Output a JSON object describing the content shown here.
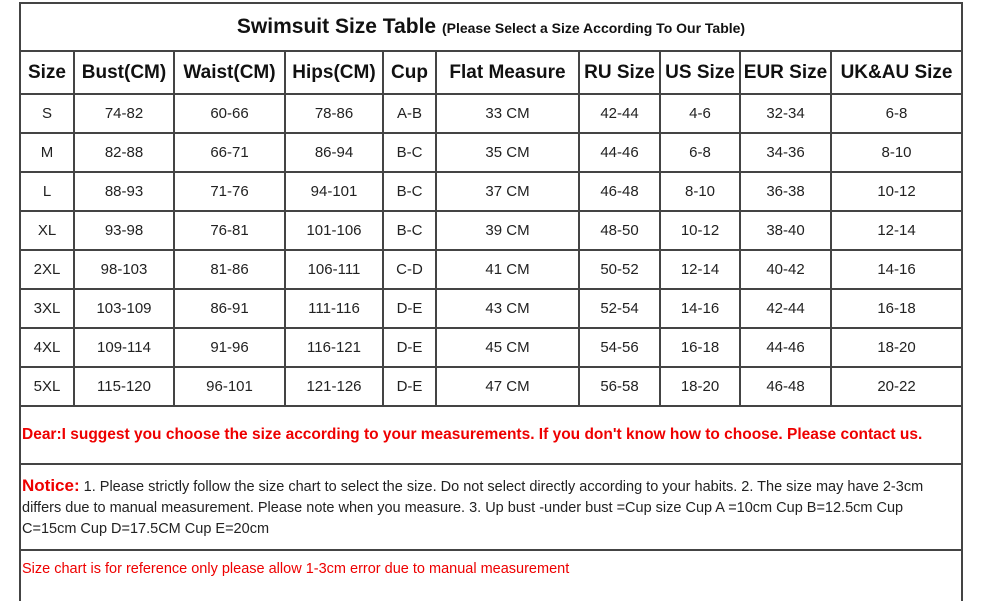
{
  "title": "Swimsuit Size Table",
  "subtitle": "(Please Select a Size According To Our Table)",
  "headers": [
    "Size",
    "Bust(CM)",
    "Waist(CM)",
    "Hips(CM)",
    "Cup",
    "Flat Measure",
    "RU Size",
    "US Size",
    "EUR Size",
    "UK&AU Size"
  ],
  "rows": [
    [
      "S",
      "74-82",
      "60-66",
      "78-86",
      "A-B",
      "33 CM",
      "42-44",
      "4-6",
      "32-34",
      "6-8"
    ],
    [
      "M",
      "82-88",
      "66-71",
      "86-94",
      "B-C",
      "35 CM",
      "44-46",
      "6-8",
      "34-36",
      "8-10"
    ],
    [
      "L",
      "88-93",
      "71-76",
      "94-101",
      "B-C",
      "37 CM",
      "46-48",
      "8-10",
      "36-38",
      "10-12"
    ],
    [
      "XL",
      "93-98",
      "76-81",
      "101-106",
      "B-C",
      "39 CM",
      "48-50",
      "10-12",
      "38-40",
      "12-14"
    ],
    [
      "2XL",
      "98-103",
      "81-86",
      "106-111",
      "C-D",
      "41 CM",
      "50-52",
      "12-14",
      "40-42",
      "14-16"
    ],
    [
      "3XL",
      "103-109",
      "86-91",
      "111-116",
      "D-E",
      "43 CM",
      "52-54",
      "14-16",
      "42-44",
      "16-18"
    ],
    [
      "4XL",
      "109-114",
      "91-96",
      "116-121",
      "D-E",
      "45 CM",
      "54-56",
      "16-18",
      "44-46",
      "18-20"
    ],
    [
      "5XL",
      "115-120",
      "96-101",
      "121-126",
      "D-E",
      "47 CM",
      "56-58",
      "18-20",
      "46-48",
      "20-22"
    ]
  ],
  "dear": "Dear:I suggest you choose the size according to your measurements. If you don't know how to choose. Please contact us.",
  "notice_label": "Notice:",
  "notice_text": " 1. Please strictly follow the size chart  to select the size. Do not select directly according to your habits. 2. The size may have 2-3cm differs due to manual measurement. Please note when you measure. 3. Up bust -under bust =Cup size  Cup A =10cm Cup B=12.5cm   Cup C=15cm   Cup D=17.5CM   Cup E=20cm",
  "reference": "Size chart is for reference only please allow 1-3cm error due to manual measurement"
}
